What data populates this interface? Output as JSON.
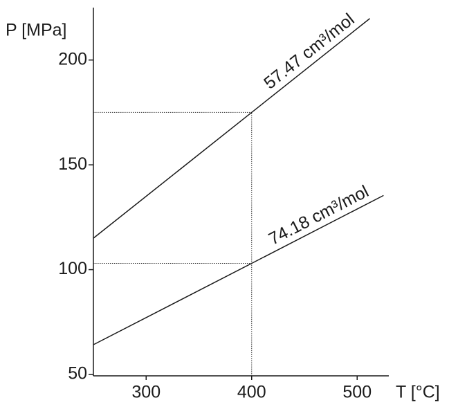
{
  "chart_data": {
    "type": "line",
    "x_label": "T [°C]",
    "y_label": "P [MPa]",
    "xlim": [
      250,
      530
    ],
    "ylim": [
      50,
      225
    ],
    "xticks": [
      300,
      400,
      500
    ],
    "yticks": [
      50,
      100,
      150,
      200
    ],
    "series": [
      {
        "name": "57.47 cm³/mol",
        "color": "#1a1a1a",
        "x": [
          250,
          400,
          512
        ],
        "values": [
          115,
          175,
          219.8
        ]
      },
      {
        "name": "74.18 cm³/mol",
        "color": "#1a1a1a",
        "x": [
          250,
          400,
          525
        ],
        "values": [
          64.2,
          103,
          135.4
        ]
      }
    ],
    "reference_lines": {
      "x": 400,
      "y": [
        175,
        103
      ]
    }
  }
}
